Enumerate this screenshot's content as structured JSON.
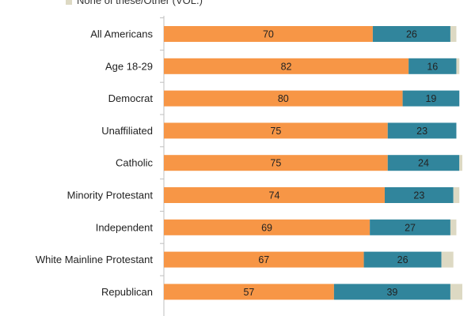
{
  "chart_data": {
    "type": "bar",
    "orientation": "horizontal",
    "stacked": true,
    "categories": [
      "All Americans",
      "Age 18-29",
      "Democrat",
      "Unaffiliated",
      "Catholic",
      "Minority Protestant",
      "Independent",
      "White Mainline Protestant",
      "Republican"
    ],
    "series": [
      {
        "values": [
          70,
          82,
          80,
          75,
          75,
          74,
          69,
          67,
          57
        ],
        "color": "#f79646"
      },
      {
        "values": [
          26,
          16,
          19,
          23,
          24,
          23,
          27,
          26,
          39
        ],
        "color": "#31859c"
      },
      {
        "name": "None of these/Other (VOL.)",
        "values": [
          2,
          1,
          0,
          0,
          1,
          2,
          2,
          4,
          4
        ],
        "color": "#ddd9c3"
      }
    ],
    "data_labels": {
      "series_0": [
        "70",
        "82",
        "80",
        "75",
        "75",
        "74",
        "69",
        "67",
        "57"
      ],
      "series_1": [
        "26",
        "16",
        "19",
        "23",
        "24",
        "23",
        "27",
        "26",
        "39"
      ]
    },
    "xlim": [
      0,
      100
    ],
    "grid": false,
    "legend_position": "top-left",
    "title": "",
    "xlabel": "",
    "ylabel": ""
  }
}
